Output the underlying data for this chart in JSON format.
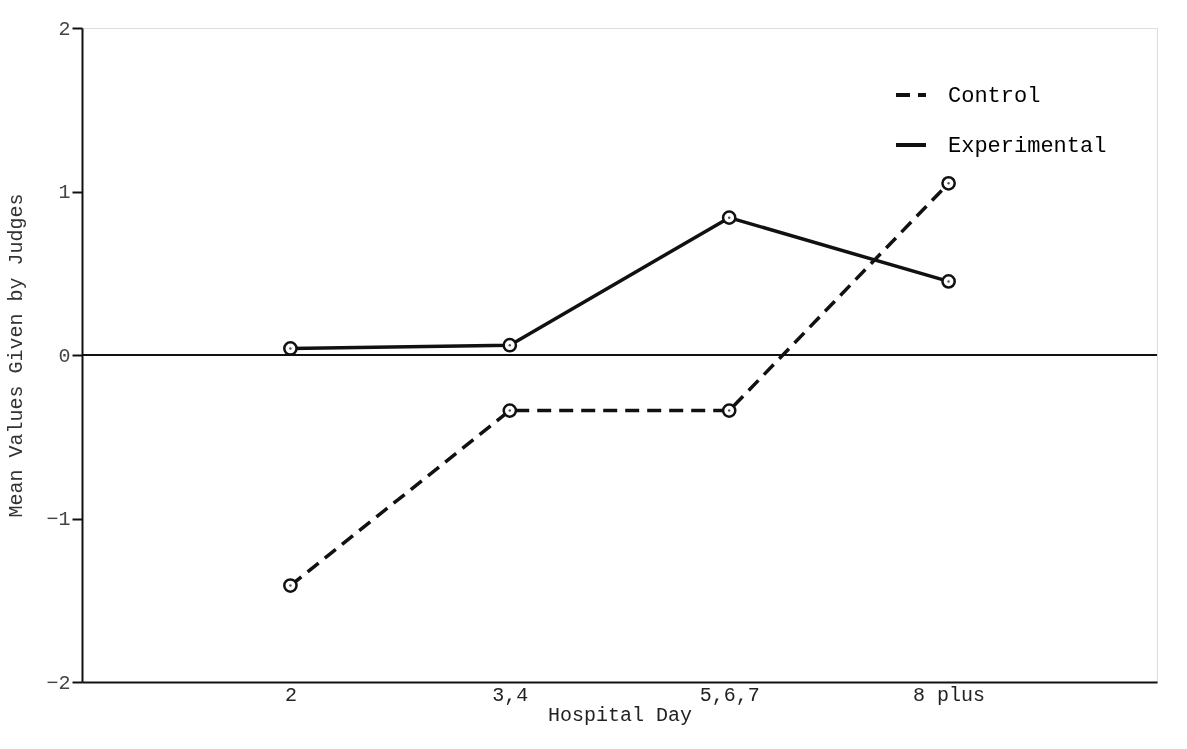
{
  "chart_data": {
    "type": "line",
    "xlabel": "Hospital Day",
    "ylabel": "Mean Values Given by Judges",
    "categories": [
      "2",
      "3,4",
      "5,6,7",
      "8 plus"
    ],
    "series": [
      {
        "name": "Control",
        "color": "#111111",
        "line_style": "dashed",
        "values": [
          -1.41,
          -0.34,
          -0.34,
          1.05
        ]
      },
      {
        "name": "Experimental",
        "color": "#111111",
        "line_style": "solid",
        "values": [
          0.04,
          0.06,
          0.84,
          0.45
        ]
      }
    ],
    "ylim": [
      -2,
      2
    ],
    "yticks": [
      -2,
      -1,
      0,
      1,
      2
    ],
    "marker": "circle",
    "grid": false,
    "legend": "top right",
    "ref_lines": [
      {
        "axis": "y",
        "value": 0,
        "label": null
      }
    ]
  }
}
